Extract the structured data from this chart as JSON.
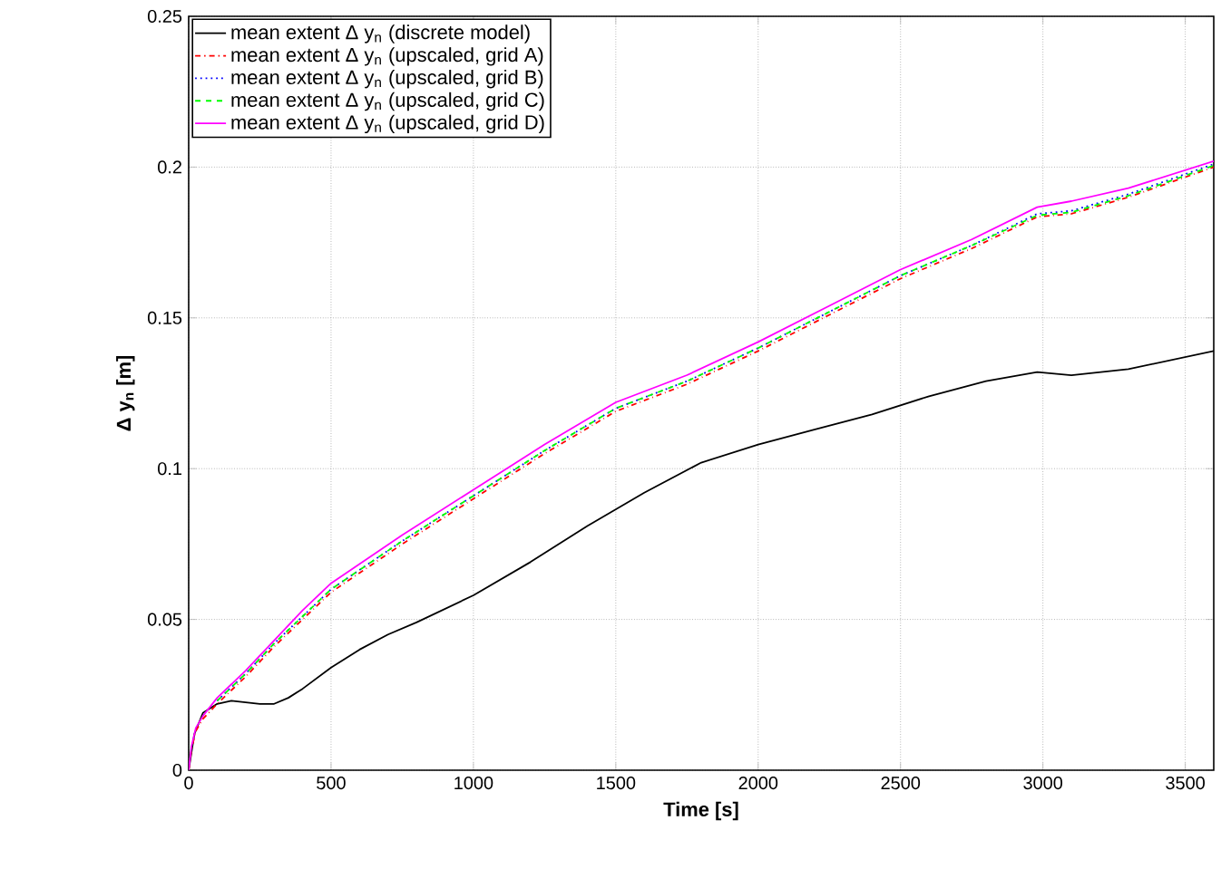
{
  "chart_data": {
    "type": "line",
    "xlabel": "Time [s]",
    "ylabel": "Δ y$_{n}$ [m]",
    "xlim": [
      0,
      3600
    ],
    "ylim": [
      0,
      0.25
    ],
    "xticks": [
      0,
      500,
      1000,
      1500,
      2000,
      2500,
      3000,
      3500
    ],
    "yticks": [
      0,
      0.05,
      0.1,
      0.15,
      0.2,
      0.25
    ],
    "grid": true,
    "legend": "top left",
    "x": [
      0,
      10,
      25,
      50,
      100,
      200,
      300,
      400,
      500,
      750,
      1000,
      1250,
      1500,
      1750,
      2000,
      2250,
      2500,
      2750,
      2980,
      3100,
      3300,
      3600
    ],
    "series": [
      {
        "name": "mean extent Δ y$_{n}$  (discrete model)",
        "color": "#000000",
        "line_style": "solid",
        "x": [
          0,
          20,
          50,
          100,
          150,
          200,
          250,
          300,
          350,
          400,
          500,
          600,
          700,
          800,
          1000,
          1200,
          1400,
          1600,
          1800,
          2000,
          2200,
          2400,
          2600,
          2800,
          2980,
          3100,
          3300,
          3600
        ],
        "values": [
          0,
          0.012,
          0.019,
          0.022,
          0.023,
          0.0225,
          0.022,
          0.022,
          0.024,
          0.027,
          0.034,
          0.04,
          0.045,
          0.049,
          0.058,
          0.069,
          0.081,
          0.092,
          0.102,
          0.108,
          0.113,
          0.118,
          0.124,
          0.129,
          0.132,
          0.131,
          0.133,
          0.139
        ]
      },
      {
        "name": "mean extent Δ y$_{n}$  (upscaled, grid A)",
        "color": "#ff0000",
        "line_style": "dashdot",
        "values": [
          0,
          0.007,
          0.013,
          0.017,
          0.022,
          0.031,
          0.041,
          0.05,
          0.059,
          0.075,
          0.09,
          0.105,
          0.119,
          0.128,
          0.139,
          0.151,
          0.163,
          0.173,
          0.1835,
          0.1845,
          0.19,
          0.2
        ]
      },
      {
        "name": "mean extent Δ y$_{n}$  (upscaled, grid B)",
        "color": "#0000ff",
        "line_style": "dotted",
        "values": [
          null,
          null,
          null,
          null,
          0.023,
          0.032,
          0.042,
          0.051,
          0.06,
          0.076,
          0.091,
          0.106,
          0.12,
          0.129,
          0.14,
          0.152,
          0.164,
          0.174,
          0.1845,
          0.1855,
          0.191,
          0.201
        ]
      },
      {
        "name": "mean extent Δ y$_{n}$  (upscaled, grid C)",
        "color": "#00ff00",
        "line_style": "dashed",
        "values": [
          null,
          null,
          null,
          null,
          0.023,
          0.032,
          0.042,
          0.051,
          0.06,
          0.076,
          0.091,
          0.106,
          0.12,
          0.129,
          0.14,
          0.152,
          0.164,
          0.174,
          0.184,
          0.185,
          0.1905,
          0.2005
        ]
      },
      {
        "name": "mean extent Δ y$_{n}$  (upscaled, grid D)",
        "color": "#ff00ff",
        "line_style": "solid",
        "values": [
          0,
          0.008,
          0.014,
          0.018,
          0.024,
          0.033,
          0.043,
          0.053,
          0.062,
          0.078,
          0.093,
          0.108,
          0.122,
          0.131,
          0.142,
          0.154,
          0.166,
          0.176,
          0.1867,
          0.1887,
          0.193,
          0.202
        ]
      }
    ]
  }
}
